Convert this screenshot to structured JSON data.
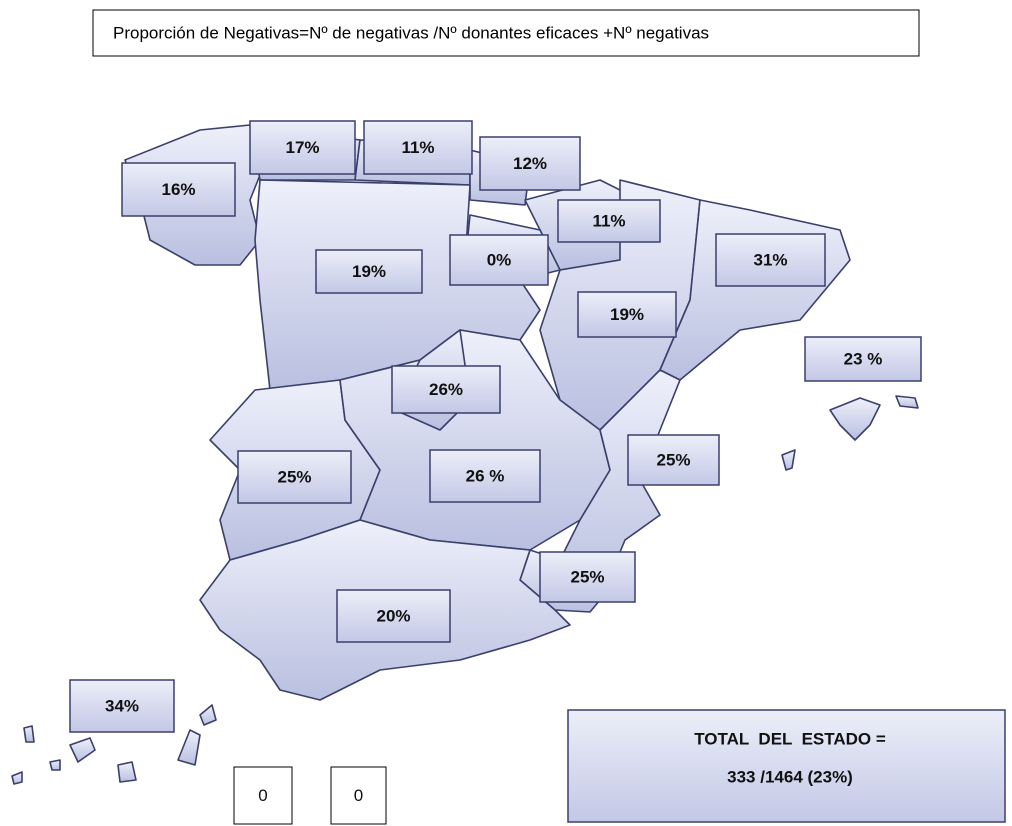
{
  "title": "Proporción de Negativas=Nº de negativas /Nº donantes eficaces +Nº negativas",
  "labels": [
    "16%",
    "17%",
    "11%",
    "12%",
    "11%",
    "0%",
    "19%",
    "31%",
    "19%",
    "23 %",
    "26%",
    "25%",
    "26 %",
    "25%",
    "25%",
    "20%",
    "34%",
    "0",
    "0"
  ],
  "total": {
    "line1": "TOTAL  DEL  ESTADO =",
    "line2": "333 /1464 (23%)"
  }
}
